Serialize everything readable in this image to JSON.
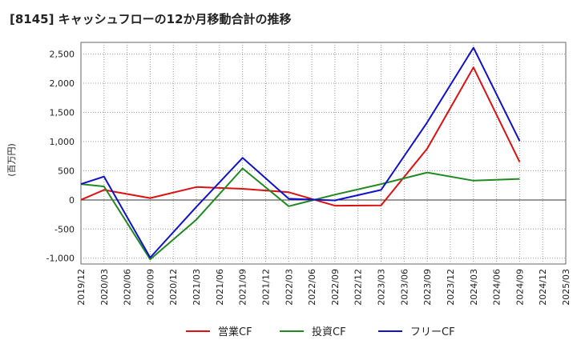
{
  "chart_data": {
    "type": "line",
    "title": "[8145]  キャッシュフローの12か月移動合計の推移",
    "xlabel": "",
    "ylabel": "(百万円)",
    "ylim": [
      -1100,
      2700
    ],
    "yticks": [
      2500,
      2000,
      1500,
      1000,
      500,
      0,
      -500,
      -1000
    ],
    "ytick_labels": [
      "2,500",
      "2,000",
      "1,500",
      "1,000",
      "500",
      "0",
      "-500",
      "-1,000"
    ],
    "grid": true,
    "legend_position": "bottom",
    "categories": [
      "2019/12",
      "2020/03",
      "2020/06",
      "2020/09",
      "2020/12",
      "2021/03",
      "2021/06",
      "2021/09",
      "2021/12",
      "2022/03",
      "2022/06",
      "2022/09",
      "2022/12",
      "2023/03",
      "2023/06",
      "2023/09",
      "2023/12",
      "2024/03",
      "2024/06",
      "2024/09",
      "2024/12",
      "2025/03"
    ],
    "series": [
      {
        "name": "営業CF",
        "color": "#dd1111",
        "values": [
          0,
          170,
          null,
          30,
          null,
          220,
          null,
          190,
          null,
          130,
          null,
          -100,
          null,
          -95,
          null,
          880,
          null,
          2270,
          null,
          650,
          null,
          null
        ]
      },
      {
        "name": "投資CF",
        "color": "#228822",
        "values": [
          270,
          230,
          null,
          -1020,
          null,
          -340,
          null,
          540,
          null,
          -110,
          null,
          90,
          null,
          270,
          null,
          470,
          null,
          330,
          null,
          360,
          null,
          null
        ]
      },
      {
        "name": "フリーCF",
        "color": "#1111cc",
        "values": [
          270,
          400,
          null,
          -990,
          null,
          -120,
          null,
          720,
          null,
          20,
          null,
          -10,
          null,
          170,
          null,
          1330,
          null,
          2610,
          null,
          1010,
          null,
          null
        ]
      }
    ]
  }
}
